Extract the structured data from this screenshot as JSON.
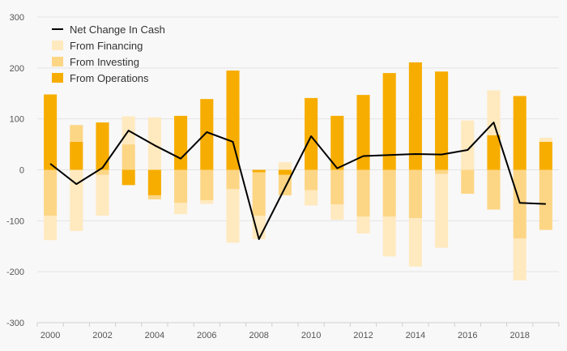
{
  "chart_data": {
    "type": "bar",
    "x": [
      2000,
      2001,
      2002,
      2003,
      2004,
      2005,
      2006,
      2007,
      2008,
      2009,
      2010,
      2011,
      2012,
      2013,
      2014,
      2015,
      2016,
      2017,
      2018,
      2019
    ],
    "x_tick_labels": [
      "2000",
      "2002",
      "2004",
      "2006",
      "2008",
      "2010",
      "2012",
      "2014",
      "2016",
      "2018"
    ],
    "y_tick_labels": [
      "300",
      "200",
      "100",
      "0",
      "-100",
      "-200",
      "-300"
    ],
    "ylim": [
      -300,
      300
    ],
    "grid": true,
    "legend_position": "top-left",
    "series": [
      {
        "name": "From Operations",
        "kind": "bar",
        "color": "#f7ad00",
        "values": [
          148,
          55,
          93,
          -30,
          -50,
          106,
          139,
          195,
          -5,
          -10,
          141,
          106,
          147,
          190,
          211,
          193,
          0,
          68,
          145,
          55
        ]
      },
      {
        "name": "From Investing",
        "kind": "bar",
        "color": "#fdd685",
        "values": [
          -90,
          33,
          -10,
          50,
          -8,
          -65,
          -60,
          -38,
          -85,
          -40,
          -40,
          -68,
          -92,
          -92,
          -95,
          -8,
          -47,
          -78,
          -135,
          -118
        ]
      },
      {
        "name": "From Financing",
        "kind": "bar",
        "color": "#ffe9bf",
        "values": [
          -48,
          -120,
          -80,
          55,
          103,
          -22,
          -7,
          -105,
          -46,
          15,
          -30,
          -30,
          -33,
          -78,
          -95,
          -145,
          97,
          88,
          -82,
          8
        ]
      },
      {
        "name": "Net Change In Cash",
        "kind": "line",
        "color": "#000000",
        "values": [
          12,
          -28,
          4,
          77,
          48,
          22,
          74,
          55,
          -136,
          -35,
          66,
          3,
          27,
          29,
          31,
          30,
          39,
          93,
          -65,
          -67
        ]
      }
    ]
  }
}
